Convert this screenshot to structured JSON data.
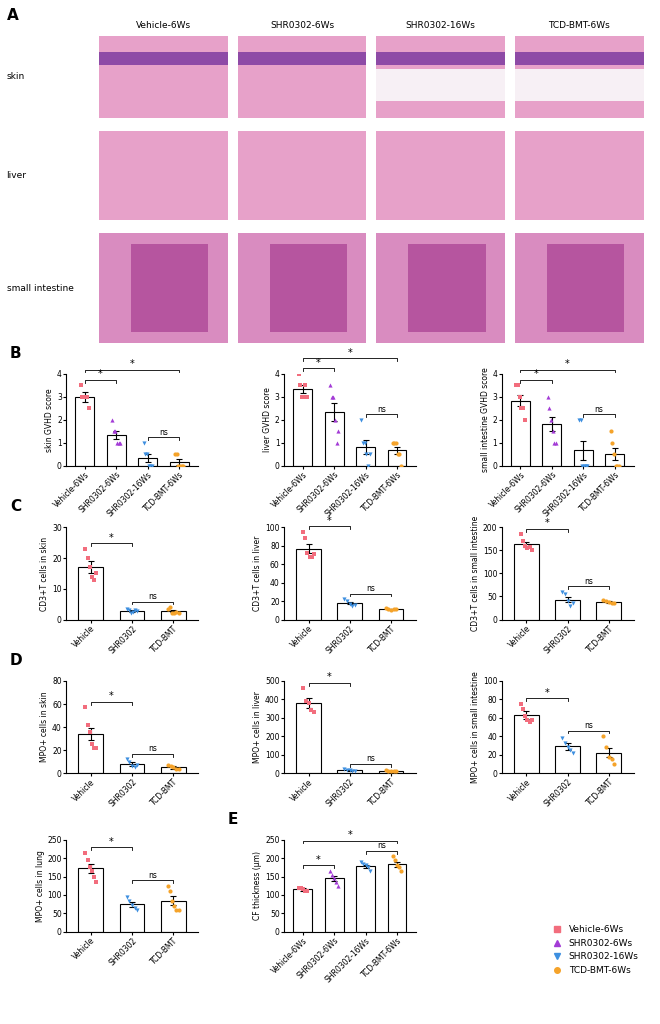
{
  "panel_a": {
    "panel": "A",
    "columns": [
      "Vehicle-6Ws",
      "SHR0302-6Ws",
      "SHR0302-16Ws",
      "TCD-BMT-6Ws"
    ],
    "rows": [
      "skin",
      "liver",
      "small intestine"
    ]
  },
  "legend": "lower right",
  "groups": [
    {
      "name": "Vehicle-6Ws",
      "color": "#f26d7d",
      "marker": "square"
    },
    {
      "name": "SHR0302-6Ws",
      "color": "#a33bd6",
      "marker": "triangle_up"
    },
    {
      "name": "SHR0302-16Ws",
      "color": "#3d8fe0",
      "marker": "triangle_down"
    },
    {
      "name": "TCD-BMT-6Ws",
      "color": "#f5a32a",
      "marker": "circle"
    }
  ],
  "chart_data": [
    {
      "type": "bar",
      "panel": "B",
      "ylabel": "skin GVHD score",
      "categories": [
        "Vehicle-6Ws",
        "SHR0302-6Ws",
        "SHR0302-16Ws",
        "TCD-BMT-6Ws"
      ],
      "ylim": [
        0,
        4
      ],
      "yticks": [
        0,
        1,
        2,
        3,
        4
      ],
      "series": [
        {
          "color": "#f26d7d",
          "marker": "square",
          "mean": 3.0,
          "error": 0.22,
          "points": [
            3.5,
            3,
            3,
            3,
            3,
            2.5
          ]
        },
        {
          "color": "#a33bd6",
          "marker": "triangle_up",
          "mean": 1.33,
          "error": 0.17,
          "points": [
            2,
            1.5,
            1.5,
            1,
            1,
            1
          ]
        },
        {
          "color": "#3d8fe0",
          "marker": "triangle_down",
          "mean": 0.33,
          "error": 0.17,
          "points": [
            1,
            0.5,
            0.5,
            0,
            0,
            0
          ]
        },
        {
          "color": "#f5a32a",
          "marker": "circle",
          "mean": 0.17,
          "error": 0.11,
          "points": [
            0.5,
            0.5,
            0,
            0,
            0,
            0
          ]
        }
      ],
      "annotations": [
        {
          "from": 0,
          "to": 1,
          "text": "*"
        },
        {
          "from": 0,
          "to": 3,
          "text": "*"
        },
        {
          "from": 2,
          "to": 3,
          "text": "ns"
        }
      ]
    },
    {
      "type": "bar",
      "ylabel": "liver GVHD score",
      "categories": [
        "Vehicle-6Ws",
        "SHR0302-6Ws",
        "SHR0302-16Ws",
        "TCD-BMT-6Ws"
      ],
      "ylim": [
        0,
        4
      ],
      "yticks": [
        0,
        1,
        2,
        3,
        4
      ],
      "series": [
        {
          "color": "#f26d7d",
          "marker": "square",
          "mean": 3.33,
          "error": 0.17,
          "points": [
            4,
            3.5,
            3,
            3,
            3.5,
            3
          ]
        },
        {
          "color": "#a33bd6",
          "marker": "triangle_up",
          "mean": 2.33,
          "error": 0.4,
          "points": [
            3.5,
            3,
            3,
            2,
            1,
            1.5
          ]
        },
        {
          "color": "#3d8fe0",
          "marker": "triangle_down",
          "mean": 0.83,
          "error": 0.3,
          "points": [
            2,
            1,
            1,
            0.5,
            0,
            0.5
          ]
        },
        {
          "color": "#f5a32a",
          "marker": "circle",
          "mean": 0.67,
          "error": 0.17,
          "points": [
            1,
            1,
            1,
            0.5,
            0.5,
            0
          ]
        }
      ],
      "annotations": [
        {
          "from": 0,
          "to": 1,
          "text": "*"
        },
        {
          "from": 0,
          "to": 3,
          "text": "*"
        },
        {
          "from": 2,
          "to": 3,
          "text": "ns"
        }
      ]
    },
    {
      "type": "bar",
      "ylabel": "small intestine GVHD score",
      "categories": [
        "Vehicle-6Ws",
        "SHR0302-6Ws",
        "SHR0302-16Ws",
        "TCD-BMT-6Ws"
      ],
      "ylim": [
        0,
        4
      ],
      "yticks": [
        0,
        1,
        2,
        3,
        4
      ],
      "series": [
        {
          "color": "#f26d7d",
          "marker": "square",
          "mean": 2.83,
          "error": 0.25,
          "points": [
            3.5,
            3.5,
            3,
            2.5,
            2.5,
            2
          ]
        },
        {
          "color": "#a33bd6",
          "marker": "triangle_up",
          "mean": 1.83,
          "error": 0.31,
          "points": [
            3,
            2.5,
            2,
            1.5,
            1,
            1
          ]
        },
        {
          "color": "#3d8fe0",
          "marker": "triangle_down",
          "mean": 0.67,
          "error": 0.42,
          "points": [
            2,
            2,
            0,
            0,
            0,
            0
          ]
        },
        {
          "color": "#f5a32a",
          "marker": "circle",
          "mean": 0.5,
          "error": 0.26,
          "points": [
            1.5,
            1,
            0.5,
            0,
            0,
            0
          ]
        }
      ],
      "annotations": [
        {
          "from": 0,
          "to": 1,
          "text": "*"
        },
        {
          "from": 0,
          "to": 3,
          "text": "*"
        },
        {
          "from": 2,
          "to": 3,
          "text": "ns"
        }
      ]
    },
    {
      "type": "bar",
      "panel": "C",
      "ylabel": "CD3+T cells in skin",
      "categories": [
        "Vehicle",
        "SHR0302",
        "TCD-BMT"
      ],
      "ylim": [
        0,
        30
      ],
      "yticks": [
        0,
        10,
        20,
        30
      ],
      "series": [
        {
          "color": "#f26d7d",
          "marker": "square",
          "mean": 17,
          "error": 2,
          "points": [
            23,
            20,
            17,
            14,
            13,
            15
          ]
        },
        {
          "color": "#3d8fe0",
          "marker": "triangle_down",
          "mean": 2.8,
          "error": 0.3,
          "points": [
            3.5,
            3,
            2,
            2.5,
            3,
            2.8
          ]
        },
        {
          "color": "#f5a32a",
          "marker": "circle",
          "mean": 2.7,
          "error": 0.4,
          "points": [
            3.5,
            4,
            2,
            2,
            2.5,
            2.2
          ]
        }
      ],
      "annotations": [
        {
          "from": 0,
          "to": 1,
          "text": "*"
        },
        {
          "from": 1,
          "to": 2,
          "text": "ns"
        }
      ]
    },
    {
      "type": "bar",
      "ylabel": "CD3+T cells in liver",
      "categories": [
        "Vehicle",
        "SHR0302",
        "TCD-BMT"
      ],
      "ylim": [
        0,
        100
      ],
      "yticks": [
        0,
        20,
        40,
        60,
        80,
        100
      ],
      "series": [
        {
          "color": "#f26d7d",
          "marker": "square",
          "mean": 77,
          "error": 5,
          "points": [
            95,
            88,
            72,
            68,
            68,
            71
          ]
        },
        {
          "color": "#3d8fe0",
          "marker": "triangle_down",
          "mean": 18,
          "error": 1.5,
          "points": [
            22,
            20,
            17,
            15,
            16
          ]
        },
        {
          "color": "#f5a32a",
          "marker": "circle",
          "mean": 11,
          "error": 0.5,
          "points": [
            12,
            11,
            10,
            11,
            11
          ]
        }
      ],
      "annotations": [
        {
          "from": 0,
          "to": 1,
          "text": "*"
        },
        {
          "from": 1,
          "to": 2,
          "text": "ns"
        }
      ]
    },
    {
      "type": "bar",
      "ylabel": "CD3+T cells in small intestine",
      "categories": [
        "Vehicle",
        "SHR0302",
        "TCD-BMT"
      ],
      "ylim": [
        0,
        200
      ],
      "yticks": [
        0,
        50,
        100,
        150,
        200
      ],
      "series": [
        {
          "color": "#f26d7d",
          "marker": "square",
          "mean": 163,
          "error": 6,
          "points": [
            185,
            170,
            160,
            155,
            158,
            150
          ]
        },
        {
          "color": "#3d8fe0",
          "marker": "triangle_down",
          "mean": 43,
          "error": 6,
          "points": [
            60,
            55,
            40,
            30,
            35
          ]
        },
        {
          "color": "#f5a32a",
          "marker": "circle",
          "mean": 38,
          "error": 2,
          "points": [
            42,
            40,
            38,
            35,
            36
          ]
        }
      ],
      "annotations": [
        {
          "from": 0,
          "to": 1,
          "text": "*"
        },
        {
          "from": 1,
          "to": 2,
          "text": "ns"
        }
      ]
    },
    {
      "type": "bar",
      "panel": "D",
      "ylabel": "MPO+ cells in skin",
      "categories": [
        "Vehicle",
        "SHR0302",
        "TCD-BMT"
      ],
      "ylim": [
        0,
        80
      ],
      "yticks": [
        0,
        20,
        40,
        60,
        80
      ],
      "series": [
        {
          "color": "#f26d7d",
          "marker": "square",
          "mean": 34,
          "error": 5,
          "points": [
            57,
            42,
            36,
            25,
            22,
            22
          ]
        },
        {
          "color": "#3d8fe0",
          "marker": "triangle_down",
          "mean": 8,
          "error": 1.5,
          "points": [
            12,
            10,
            6,
            5,
            7
          ]
        },
        {
          "color": "#f5a32a",
          "marker": "circle",
          "mean": 5,
          "error": 1,
          "points": [
            7,
            6,
            5,
            4,
            4
          ]
        }
      ],
      "annotations": [
        {
          "from": 0,
          "to": 1,
          "text": "*"
        },
        {
          "from": 1,
          "to": 2,
          "text": "ns"
        }
      ]
    },
    {
      "type": "bar",
      "ylabel": "MPO+ cells in liver",
      "categories": [
        "Vehicle",
        "SHR0302",
        "TCD-BMT"
      ],
      "ylim": [
        0,
        500
      ],
      "yticks": [
        0,
        100,
        200,
        300,
        400,
        500
      ],
      "series": [
        {
          "color": "#f26d7d",
          "marker": "square",
          "mean": 380,
          "error": 25,
          "points": [
            460,
            390,
            380,
            340,
            330
          ]
        },
        {
          "color": "#3d8fe0",
          "marker": "triangle_down",
          "mean": 15,
          "error": 2,
          "points": [
            20,
            18,
            15,
            12,
            10
          ]
        },
        {
          "color": "#f5a32a",
          "marker": "circle",
          "mean": 12,
          "error": 1,
          "points": [
            15,
            14,
            10,
            10,
            11
          ]
        }
      ],
      "annotations": [
        {
          "from": 0,
          "to": 1,
          "text": "*"
        },
        {
          "from": 1,
          "to": 2,
          "text": "ns"
        }
      ]
    },
    {
      "type": "bar",
      "ylabel": "MPO+ cells in small intestine",
      "categories": [
        "Vehicle",
        "SHR0302",
        "TCD-BMT"
      ],
      "ylim": [
        0,
        100
      ],
      "yticks": [
        0,
        20,
        40,
        60,
        80,
        100
      ],
      "series": [
        {
          "color": "#f26d7d",
          "marker": "square",
          "mean": 63,
          "error": 4,
          "points": [
            75,
            70,
            62,
            58,
            55,
            58
          ]
        },
        {
          "color": "#3d8fe0",
          "marker": "triangle_down",
          "mean": 29,
          "error": 4,
          "points": [
            38,
            33,
            28,
            25,
            22
          ]
        },
        {
          "color": "#f5a32a",
          "marker": "circle",
          "mean": 22,
          "error": 5,
          "points": [
            40,
            28,
            18,
            15,
            10
          ]
        }
      ],
      "annotations": [
        {
          "from": 0,
          "to": 1,
          "text": "*"
        },
        {
          "from": 1,
          "to": 2,
          "text": "ns"
        }
      ]
    },
    {
      "type": "bar",
      "ylabel": "MPO+ cells in lung",
      "categories": [
        "Vehicle",
        "SHR0302",
        "TCD-BMT"
      ],
      "ylim": [
        0,
        250
      ],
      "yticks": [
        0,
        50,
        100,
        150,
        200,
        250
      ],
      "series": [
        {
          "color": "#f26d7d",
          "marker": "square",
          "mean": 172,
          "error": 12,
          "points": [
            215,
            195,
            175,
            165,
            150,
            135
          ]
        },
        {
          "color": "#3d8fe0",
          "marker": "triangle_down",
          "mean": 75,
          "error": 7,
          "points": [
            95,
            85,
            72,
            65,
            60
          ]
        },
        {
          "color": "#f5a32a",
          "marker": "circle",
          "mean": 85,
          "error": 12,
          "points": [
            125,
            110,
            85,
            70,
            60,
            60
          ]
        }
      ],
      "annotations": [
        {
          "from": 0,
          "to": 1,
          "text": "*"
        },
        {
          "from": 1,
          "to": 2,
          "text": "ns"
        }
      ]
    },
    {
      "type": "bar",
      "panel": "E",
      "ylabel": "CF thickness (μm)",
      "categories": [
        "Vehicle-6Ws",
        "SHR0302-6Ws",
        "SHR0302-16Ws",
        "TCD-BMT-6Ws"
      ],
      "ylim": [
        0,
        250
      ],
      "yticks": [
        0,
        50,
        100,
        150,
        200,
        250
      ],
      "series": [
        {
          "color": "#f26d7d",
          "marker": "square",
          "mean": 115,
          "error": 3,
          "points": [
            120,
            118,
            115,
            112,
            110
          ]
        },
        {
          "color": "#a33bd6",
          "marker": "triangle_up",
          "mean": 145,
          "error": 7,
          "points": [
            165,
            155,
            145,
            135,
            125
          ]
        },
        {
          "color": "#3d8fe0",
          "marker": "triangle_down",
          "mean": 178,
          "error": 4,
          "points": [
            190,
            185,
            180,
            175,
            165
          ]
        },
        {
          "color": "#f5a32a",
          "marker": "circle",
          "mean": 183,
          "error": 7,
          "points": [
            205,
            195,
            180,
            175,
            165
          ]
        }
      ],
      "annotations": [
        {
          "from": 0,
          "to": 1,
          "text": "*"
        },
        {
          "from": 0,
          "to": 3,
          "text": "*"
        },
        {
          "from": 2,
          "to": 3,
          "text": "ns"
        }
      ]
    }
  ]
}
